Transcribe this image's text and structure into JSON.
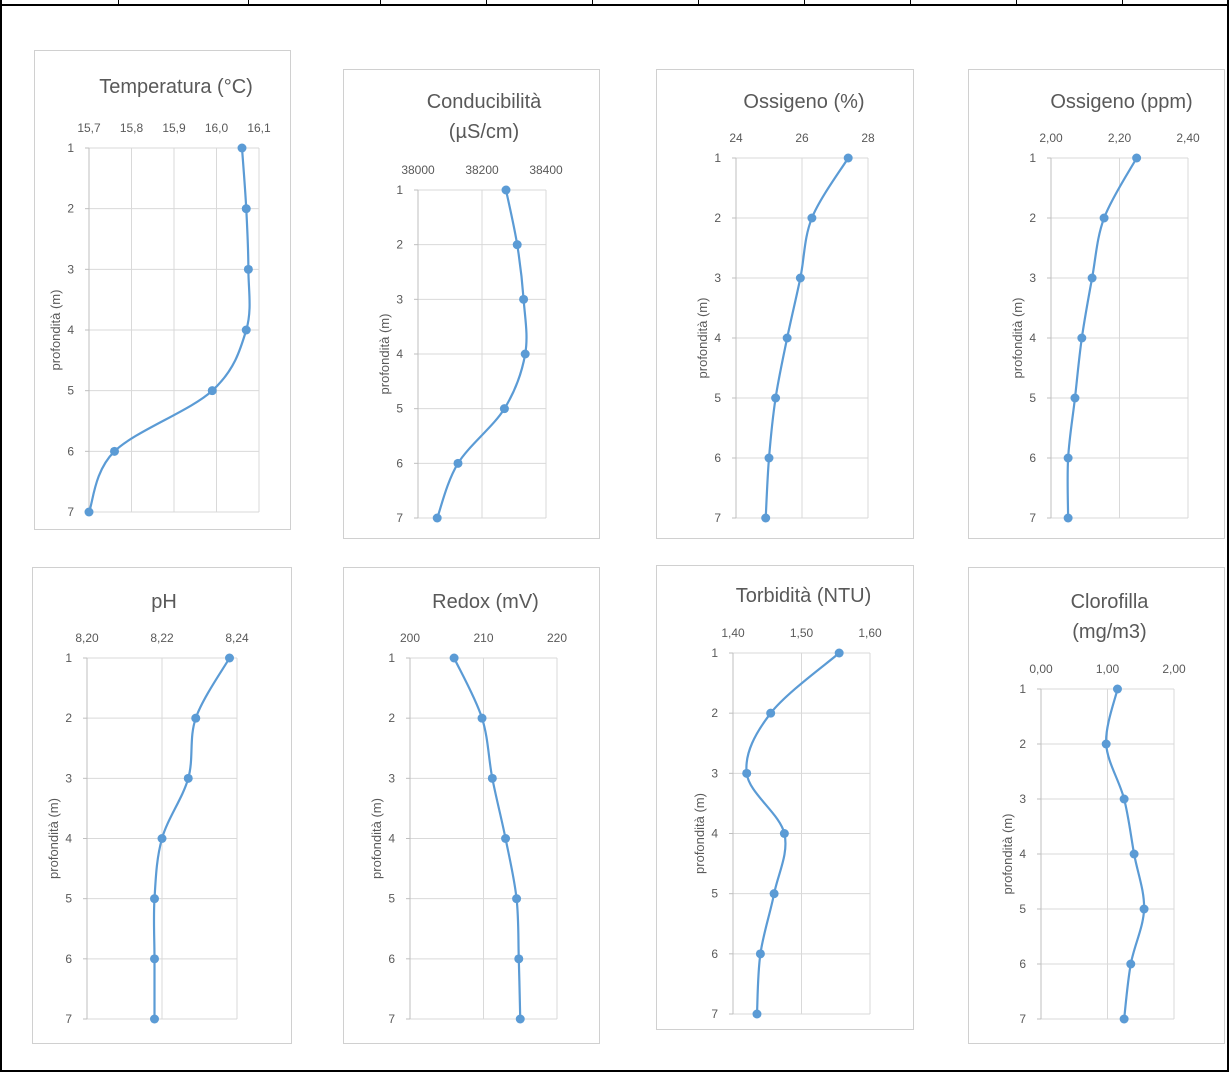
{
  "chart_data": [
    {
      "type": "line",
      "title": "Temperatura    (°C)",
      "title_lines": [
        "Temperatura    (°C)"
      ],
      "xlabel": "",
      "ylabel": "profondità (m)",
      "x_ticks": [
        "15,7",
        "15,8",
        "15,9",
        "16,0",
        "16,1"
      ],
      "xlim": [
        15.7,
        16.1
      ],
      "y_ticks": [
        "1",
        "2",
        "3",
        "4",
        "5",
        "6",
        "7"
      ],
      "ylim": [
        1,
        7
      ],
      "y_reversed": true,
      "x_axis_position": "top",
      "grid": true,
      "series": [
        {
          "x": [
            16.06,
            16.07,
            16.075,
            16.07,
            15.99,
            15.76,
            15.7
          ],
          "y": [
            1,
            2,
            3,
            4,
            5,
            6,
            7
          ]
        }
      ]
    },
    {
      "type": "line",
      "title": "Conducibilità (µS/cm)",
      "title_lines": [
        "Conducibilità",
        "(µS/cm)"
      ],
      "xlabel": "",
      "ylabel": "profondità (m)",
      "x_ticks": [
        "38000",
        "38200",
        "38400"
      ],
      "xlim": [
        38000,
        38400
      ],
      "y_ticks": [
        "1",
        "2",
        "3",
        "4",
        "5",
        "6",
        "7"
      ],
      "ylim": [
        1,
        7
      ],
      "y_reversed": true,
      "x_axis_position": "top",
      "grid": true,
      "series": [
        {
          "x": [
            38275,
            38310,
            38330,
            38335,
            38270,
            38125,
            38060
          ],
          "y": [
            1,
            2,
            3,
            4,
            5,
            6,
            7
          ]
        }
      ]
    },
    {
      "type": "line",
      "title": "Ossigeno (%)",
      "title_lines": [
        "Ossigeno (%)"
      ],
      "xlabel": "",
      "ylabel": "profondità (m)",
      "x_ticks": [
        "24",
        "26",
        "28"
      ],
      "xlim": [
        24,
        28
      ],
      "y_ticks": [
        "1",
        "2",
        "3",
        "4",
        "5",
        "6",
        "7"
      ],
      "ylim": [
        1,
        7
      ],
      "y_reversed": true,
      "x_axis_position": "top",
      "grid": true,
      "series": [
        {
          "x": [
            27.4,
            26.3,
            25.95,
            25.55,
            25.2,
            25.0,
            24.9
          ],
          "y": [
            1,
            2,
            3,
            4,
            5,
            6,
            7
          ]
        }
      ]
    },
    {
      "type": "line",
      "title": "Ossigeno (ppm)",
      "title_lines": [
        "Ossigeno (ppm)"
      ],
      "xlabel": "",
      "ylabel": "profondità (m)",
      "x_ticks": [
        "2,00",
        "2,20",
        "2,40"
      ],
      "xlim": [
        2.0,
        2.4
      ],
      "y_ticks": [
        "1",
        "2",
        "3",
        "4",
        "5",
        "6",
        "7"
      ],
      "ylim": [
        1,
        7
      ],
      "y_reversed": true,
      "x_axis_position": "top",
      "grid": true,
      "series": [
        {
          "x": [
            2.25,
            2.155,
            2.12,
            2.09,
            2.07,
            2.05,
            2.05
          ],
          "y": [
            1,
            2,
            3,
            4,
            5,
            6,
            7
          ]
        }
      ]
    },
    {
      "type": "line",
      "title": "pH",
      "title_lines": [
        "pH"
      ],
      "xlabel": "",
      "ylabel": "profondità (m)",
      "x_ticks": [
        "8,20",
        "8,22",
        "8,24"
      ],
      "xlim": [
        8.2,
        8.24
      ],
      "y_ticks": [
        "1",
        "2",
        "3",
        "4",
        "5",
        "6",
        "7"
      ],
      "ylim": [
        1,
        7
      ],
      "y_reversed": true,
      "x_axis_position": "top",
      "grid": true,
      "series": [
        {
          "x": [
            8.238,
            8.229,
            8.227,
            8.22,
            8.218,
            8.218,
            8.218
          ],
          "y": [
            1,
            2,
            3,
            4,
            5,
            6,
            7
          ]
        }
      ]
    },
    {
      "type": "line",
      "title": "Redox (mV)",
      "title_lines": [
        "Redox (mV)"
      ],
      "xlabel": "",
      "ylabel": "profondità (m)",
      "x_ticks": [
        "200",
        "210",
        "220"
      ],
      "xlim": [
        200,
        220
      ],
      "y_ticks": [
        "1",
        "2",
        "3",
        "4",
        "5",
        "6",
        "7"
      ],
      "ylim": [
        1,
        7
      ],
      "y_reversed": true,
      "x_axis_position": "top",
      "grid": true,
      "series": [
        {
          "x": [
            206.0,
            209.8,
            211.2,
            213.0,
            214.5,
            214.8,
            215.0
          ],
          "y": [
            1,
            2,
            3,
            4,
            5,
            6,
            7
          ]
        }
      ]
    },
    {
      "type": "line",
      "title": "Torbidità (NTU)",
      "title_lines": [
        "Torbidità (NTU)"
      ],
      "xlabel": "",
      "ylabel": "profondità (m)",
      "x_ticks": [
        "1,40",
        "1,50",
        "1,60"
      ],
      "xlim": [
        1.4,
        1.6
      ],
      "y_ticks": [
        "1",
        "2",
        "3",
        "4",
        "5",
        "6",
        "7"
      ],
      "ylim": [
        1,
        7
      ],
      "y_reversed": true,
      "x_axis_position": "top",
      "grid": true,
      "series": [
        {
          "x": [
            1.555,
            1.455,
            1.42,
            1.475,
            1.46,
            1.44,
            1.435
          ],
          "y": [
            1,
            2,
            3,
            4,
            5,
            6,
            7
          ]
        }
      ]
    },
    {
      "type": "line",
      "title": "Clorofilla (mg/m3)",
      "title_lines": [
        "Clorofilla",
        "(mg/m3)"
      ],
      "xlabel": "",
      "ylabel": "profondità (m)",
      "x_ticks": [
        "0,00",
        "1,00",
        "2,00"
      ],
      "xlim": [
        0.0,
        2.0
      ],
      "y_ticks": [
        "1",
        "2",
        "3",
        "4",
        "5",
        "6",
        "7"
      ],
      "ylim": [
        1,
        7
      ],
      "y_reversed": true,
      "x_axis_position": "top",
      "grid": true,
      "series": [
        {
          "x": [
            1.15,
            0.98,
            1.25,
            1.4,
            1.55,
            1.35,
            1.25
          ],
          "y": [
            1,
            2,
            3,
            4,
            5,
            6,
            7
          ]
        }
      ]
    }
  ],
  "colors": {
    "series": "#5b9bd5",
    "grid": "#d9d9d9",
    "axis": "#bfbfbf",
    "text": "#595959"
  }
}
